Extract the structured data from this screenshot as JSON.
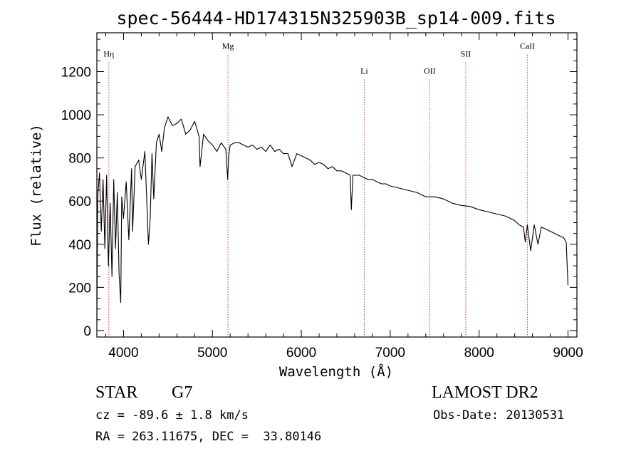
{
  "chart_data": {
    "type": "line",
    "title": "spec-56444-HD174315N325903B_sp14-009.fits",
    "xlabel": "Wavelength (Å)",
    "ylabel": "Flux (relative)",
    "xlim": [
      3700,
      9100
    ],
    "ylim": [
      -30,
      1380
    ],
    "xticks": [
      4000,
      5000,
      6000,
      7000,
      8000,
      9000
    ],
    "xtick_labels": [
      "4000",
      "5000",
      "6000",
      "7000",
      "8000",
      "9000"
    ],
    "yticks": [
      0,
      200,
      400,
      600,
      800,
      1000,
      1200
    ],
    "ytick_labels": [
      "0",
      "200",
      "400",
      "600",
      "800",
      "1000",
      "1200"
    ],
    "grid": false,
    "line_color": "#000000",
    "marker_color": "#cc3333",
    "series": [
      {
        "x": [
          3700,
          3710,
          3730,
          3750,
          3770,
          3790,
          3810,
          3830,
          3850,
          3870,
          3890,
          3910,
          3930,
          3950,
          3968,
          3980,
          4000,
          4030,
          4060,
          4090,
          4102,
          4130,
          4170,
          4200,
          4240,
          4280,
          4300,
          4320,
          4340,
          4370,
          4400,
          4430,
          4460,
          4500,
          4550,
          4600,
          4650,
          4700,
          4750,
          4800,
          4850,
          4861,
          4900,
          4950,
          5000,
          5050,
          5100,
          5150,
          5172,
          5183,
          5200,
          5250,
          5300,
          5350,
          5400,
          5450,
          5500,
          5550,
          5600,
          5650,
          5700,
          5750,
          5800,
          5850,
          5895,
          5950,
          6000,
          6050,
          6100,
          6150,
          6200,
          6250,
          6300,
          6350,
          6400,
          6450,
          6500,
          6550,
          6563,
          6580,
          6650,
          6700,
          6750,
          6800,
          6850,
          6900,
          6950,
          7000,
          7100,
          7200,
          7300,
          7400,
          7500,
          7600,
          7700,
          7800,
          7900,
          8000,
          8100,
          8200,
          8300,
          8400,
          8450,
          8498,
          8520,
          8542,
          8580,
          8620,
          8662,
          8700,
          8750,
          8800,
          8850,
          8900,
          8950,
          8980,
          9000
        ],
        "y": [
          40,
          620,
          730,
          460,
          700,
          380,
          720,
          300,
          590,
          250,
          700,
          380,
          640,
          260,
          130,
          620,
          520,
          690,
          420,
          750,
          460,
          760,
          790,
          700,
          830,
          400,
          520,
          820,
          610,
          870,
          910,
          830,
          940,
          990,
          950,
          960,
          980,
          910,
          930,
          970,
          900,
          760,
          910,
          880,
          860,
          830,
          870,
          840,
          700,
          810,
          860,
          870,
          870,
          860,
          850,
          860,
          840,
          850,
          830,
          860,
          830,
          840,
          820,
          820,
          760,
          820,
          810,
          800,
          790,
          770,
          780,
          770,
          750,
          760,
          740,
          740,
          730,
          720,
          560,
          720,
          720,
          710,
          700,
          700,
          690,
          680,
          680,
          670,
          660,
          650,
          640,
          620,
          620,
          610,
          590,
          580,
          575,
          560,
          550,
          540,
          530,
          510,
          490,
          480,
          410,
          490,
          370,
          490,
          400,
          480,
          470,
          460,
          450,
          440,
          430,
          410,
          210
        ]
      }
    ],
    "markers": [
      {
        "label": "Hη",
        "x": 3835,
        "label_level": 1270
      },
      {
        "label": "Mg",
        "x": 5175,
        "label_level": 1305
      },
      {
        "label": "Li",
        "x": 6708,
        "label_level": 1190
      },
      {
        "label": "OII",
        "x": 7444,
        "label_level": 1190
      },
      {
        "label": "SII",
        "x": 7850,
        "label_level": 1270
      },
      {
        "label": "CaII",
        "x": 8544,
        "label_level": 1305
      }
    ]
  },
  "footer": {
    "object_class": "STAR",
    "subclass": "G7",
    "survey": "LAMOST DR2",
    "cz": "cz = -89.6 ± 1.8 km/s",
    "obs_date": "Obs-Date: 20130531",
    "coords": "RA = 263.11675, DEC =  33.80146"
  }
}
